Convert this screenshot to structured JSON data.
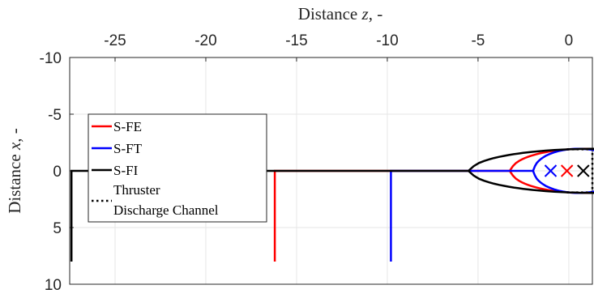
{
  "chart_data": {
    "type": "line",
    "title": "",
    "xlabel": {
      "prefix": "Distance ",
      "var": "z",
      "suffix": ", -"
    },
    "ylabel": {
      "prefix": "Distance ",
      "var": "x",
      "suffix": ", -"
    },
    "xlim": [
      -27.5,
      1.3
    ],
    "ylim": [
      10,
      -10
    ],
    "y_reversed": true,
    "x_axis_position": "top",
    "grid": true,
    "xticks": [
      -25,
      -20,
      -15,
      -10,
      -5,
      0
    ],
    "yticks": [
      -10,
      -5,
      0,
      5,
      10
    ],
    "xtick_labels": [
      "-25",
      "-20",
      "-15",
      "-10",
      "-5",
      "0"
    ],
    "ytick_labels": [
      "-10",
      "-5",
      "0",
      "5",
      "10"
    ],
    "legend_position": "middle-left",
    "legend": [
      "S-FE",
      "S-FT",
      "S-FI",
      "Thruster",
      "Discharge Channel"
    ],
    "series": [
      {
        "name": "S-FE",
        "color": "#ff0000",
        "style": "solid",
        "z_base": -16.2,
        "z_tip": 0.75,
        "x_half_base": 8.0,
        "mouth": [
          -16.2,
          8.0
        ],
        "focus": {
          "z": -0.1,
          "x": 0
        }
      },
      {
        "name": "S-FT",
        "color": "#0000ff",
        "style": "solid",
        "z_base": -9.8,
        "z_tip": 0.45,
        "x_half_base": 8.0,
        "mouth": [
          -9.8,
          8.0
        ],
        "focus": {
          "z": -1.0,
          "x": 0
        }
      },
      {
        "name": "S-FI",
        "color": "#000000",
        "style": "solid",
        "z_base": -27.4,
        "z_tip": 1.2,
        "x_half_base": 8.0,
        "mouth": [
          -27.4,
          8.0
        ],
        "focus": {
          "z": 0.8,
          "x": 0
        }
      },
      {
        "name": "Thruster Discharge Channel",
        "color": "#000000",
        "style": "dotted",
        "points": [
          [
            -0.1,
            -1.9
          ],
          [
            1.3,
            -1.9
          ],
          [
            1.3,
            1.9
          ],
          [
            -0.1,
            1.9
          ]
        ]
      }
    ],
    "throat": {
      "z": 0,
      "x_half": 1.9
    }
  }
}
